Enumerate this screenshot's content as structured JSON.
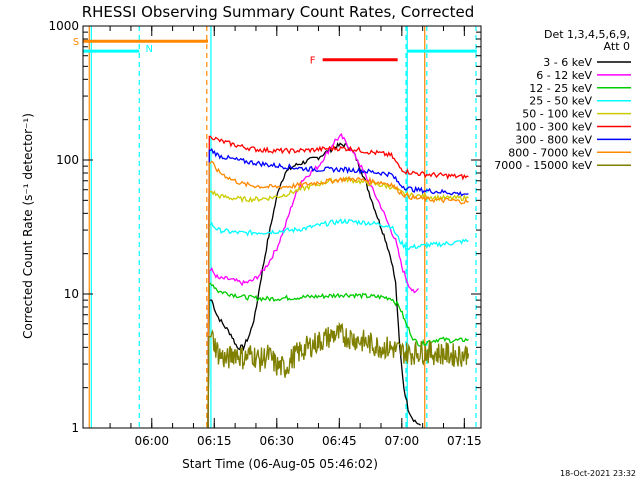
{
  "chart_data": {
    "type": "line",
    "title": "RHESSI Observing Summary Count Rates, Corrected",
    "xlabel": "Start Time (06-Aug-05 05:46:02)",
    "ylabel": "Corrected Count Rate (s⁻¹ detector⁻¹)",
    "yscale": "log",
    "ylim": [
      1,
      1000
    ],
    "xlim_minutes": [
      -2.5,
      93
    ],
    "x_ticks": [
      {
        "label": "06:00",
        "minute": 14
      },
      {
        "label": "06:15",
        "minute": 29
      },
      {
        "label": "06:30",
        "minute": 44
      },
      {
        "label": "06:45",
        "minute": 59
      },
      {
        "label": "07:00",
        "minute": 74
      },
      {
        "label": "07:15",
        "minute": 89
      }
    ],
    "y_ticks": [
      {
        "label": "1",
        "value": 1
      },
      {
        "label": "10",
        "value": 10
      },
      {
        "label": "100",
        "value": 100
      },
      {
        "label": "1000",
        "value": 1000
      }
    ],
    "legend": {
      "position": "right",
      "header": [
        "Det 1,3,4,5,6,9,",
        "Att 0"
      ]
    },
    "series": [
      {
        "name": "3 - 6 keV",
        "color": "#000000",
        "points": [
          [
            27.5,
            0
          ],
          [
            28.4,
            9
          ],
          [
            29.6,
            7
          ],
          [
            31,
            6
          ],
          [
            33,
            5
          ],
          [
            34.5,
            4
          ],
          [
            36,
            4
          ],
          [
            37.5,
            5
          ],
          [
            38.8,
            7
          ],
          [
            40,
            12
          ],
          [
            41.5,
            22
          ],
          [
            43,
            38
          ],
          [
            44.5,
            62
          ],
          [
            46,
            80
          ],
          [
            48,
            90
          ],
          [
            50,
            95
          ],
          [
            52,
            100
          ],
          [
            54,
            105
          ],
          [
            56,
            115
          ],
          [
            58,
            125
          ],
          [
            59.5,
            130
          ],
          [
            61,
            128
          ],
          [
            62.5,
            112
          ],
          [
            64,
            88
          ],
          [
            65.5,
            66
          ],
          [
            67,
            48
          ],
          [
            68.5,
            35
          ],
          [
            70,
            26
          ],
          [
            71.5,
            18
          ],
          [
            72.5,
            12
          ],
          [
            73.5,
            4
          ],
          [
            74.5,
            2
          ],
          [
            75.5,
            1.4
          ],
          [
            76.5,
            1.2
          ],
          [
            77.5,
            1.1
          ],
          [
            78.5,
            1.05
          ]
        ]
      },
      {
        "name": "6 - 12 keV",
        "color": "#ff00ff",
        "points": [
          [
            27.5,
            0
          ],
          [
            28.4,
            15
          ],
          [
            30,
            13
          ],
          [
            32,
            13
          ],
          [
            34,
            12.5
          ],
          [
            36,
            12
          ],
          [
            38,
            12.5
          ],
          [
            40,
            14
          ],
          [
            42,
            17
          ],
          [
            44,
            22
          ],
          [
            46,
            32
          ],
          [
            48,
            50
          ],
          [
            50,
            70
          ],
          [
            52,
            80
          ],
          [
            54,
            90
          ],
          [
            56,
            112
          ],
          [
            58,
            140
          ],
          [
            59.5,
            150
          ],
          [
            61,
            130
          ],
          [
            63,
            105
          ],
          [
            65,
            80
          ],
          [
            67,
            60
          ],
          [
            69,
            45
          ],
          [
            71,
            32
          ],
          [
            72.5,
            25
          ],
          [
            74,
            16
          ],
          [
            75.5,
            12
          ],
          [
            77,
            10
          ],
          [
            78,
            11
          ]
        ]
      },
      {
        "name": "12 - 25 keV",
        "color": "#00cc00",
        "points": [
          [
            27.5,
            0
          ],
          [
            28.4,
            12
          ],
          [
            30,
            10.5
          ],
          [
            33,
            10
          ],
          [
            36,
            9.5
          ],
          [
            39,
            9.3
          ],
          [
            42,
            9.2
          ],
          [
            45,
            9.3
          ],
          [
            48,
            9.4
          ],
          [
            51,
            9.5
          ],
          [
            54,
            9.6
          ],
          [
            57,
            9.7
          ],
          [
            60,
            9.9
          ],
          [
            63,
            9.8
          ],
          [
            66,
            9.6
          ],
          [
            69,
            9.5
          ],
          [
            71.5,
            9.3
          ],
          [
            73.5,
            8
          ],
          [
            75,
            6
          ],
          [
            77,
            4.5
          ],
          [
            78.5,
            4.2
          ],
          [
            80,
            4.4
          ],
          [
            83,
            4.6
          ],
          [
            86,
            4.5
          ],
          [
            88,
            4.5
          ],
          [
            90,
            4.6
          ]
        ]
      },
      {
        "name": "25 - 50 keV",
        "color": "#00ffff",
        "points": [
          [
            27.5,
            0
          ],
          [
            28.4,
            33
          ],
          [
            30,
            30
          ],
          [
            33,
            29
          ],
          [
            36,
            28.5
          ],
          [
            39,
            28.8
          ],
          [
            42,
            29
          ],
          [
            45,
            29.5
          ],
          [
            48,
            30
          ],
          [
            51,
            31
          ],
          [
            54,
            32.5
          ],
          [
            57,
            34
          ],
          [
            60,
            35
          ],
          [
            63,
            34.5
          ],
          [
            66,
            34
          ],
          [
            69,
            33
          ],
          [
            71.5,
            32
          ],
          [
            73.5,
            25
          ],
          [
            75,
            22
          ],
          [
            77,
            22.5
          ],
          [
            80,
            23
          ],
          [
            83,
            23.5
          ],
          [
            86,
            24
          ],
          [
            88,
            24.5
          ],
          [
            90,
            25
          ]
        ]
      },
      {
        "name": "50 - 100 keV",
        "color": "#cccc00",
        "points": [
          [
            27.5,
            0
          ],
          [
            28.4,
            58
          ],
          [
            30,
            54
          ],
          [
            33,
            52
          ],
          [
            36,
            51
          ],
          [
            39,
            51
          ],
          [
            42,
            52
          ],
          [
            45,
            54
          ],
          [
            48,
            58
          ],
          [
            51,
            62
          ],
          [
            54,
            66
          ],
          [
            57,
            70
          ],
          [
            60,
            72
          ],
          [
            63,
            70
          ],
          [
            66,
            67
          ],
          [
            69,
            65
          ],
          [
            71.5,
            63
          ],
          [
            73.5,
            58
          ],
          [
            75,
            55
          ],
          [
            78,
            54
          ],
          [
            81,
            53
          ],
          [
            84,
            52
          ],
          [
            87,
            52
          ],
          [
            90,
            52
          ]
        ]
      },
      {
        "name": "100 - 300 keV",
        "color": "#ff0000",
        "points": [
          [
            27.5,
            0
          ],
          [
            28.4,
            150
          ],
          [
            30,
            140
          ],
          [
            33,
            132
          ],
          [
            36,
            125
          ],
          [
            39,
            120
          ],
          [
            42,
            118
          ],
          [
            45,
            117
          ],
          [
            48,
            117
          ],
          [
            51,
            118
          ],
          [
            54,
            120
          ],
          [
            57,
            122
          ],
          [
            60,
            122
          ],
          [
            63,
            120
          ],
          [
            66,
            115
          ],
          [
            69,
            112
          ],
          [
            71.5,
            108
          ],
          [
            73.5,
            88
          ],
          [
            75,
            82
          ],
          [
            77,
            80
          ],
          [
            80,
            78
          ],
          [
            83,
            77
          ],
          [
            86,
            76
          ],
          [
            88,
            75
          ],
          [
            90,
            75
          ]
        ]
      },
      {
        "name": "300 - 800 keV",
        "color": "#0000ff",
        "points": [
          [
            27.5,
            0
          ],
          [
            28.4,
            118
          ],
          [
            30,
            108
          ],
          [
            33,
            102
          ],
          [
            36,
            98
          ],
          [
            39,
            95
          ],
          [
            42,
            92
          ],
          [
            45,
            90
          ],
          [
            48,
            88
          ],
          [
            51,
            86
          ],
          [
            54,
            85
          ],
          [
            57,
            85
          ],
          [
            60,
            85
          ],
          [
            63,
            84
          ],
          [
            66,
            82
          ],
          [
            69,
            80
          ],
          [
            71.5,
            78
          ],
          [
            73.5,
            66
          ],
          [
            75,
            62
          ],
          [
            77,
            60
          ],
          [
            80,
            59
          ],
          [
            83,
            58
          ],
          [
            86,
            57
          ],
          [
            88,
            56
          ],
          [
            90,
            56
          ]
        ]
      },
      {
        "name": "800 - 7000 keV",
        "color": "#ff8800",
        "points": [
          [
            27.5,
            0
          ],
          [
            28.4,
            95
          ],
          [
            30,
            82
          ],
          [
            33,
            72
          ],
          [
            36,
            66
          ],
          [
            39,
            64
          ],
          [
            42,
            63
          ],
          [
            45,
            63
          ],
          [
            48,
            64
          ],
          [
            51,
            66
          ],
          [
            54,
            68
          ],
          [
            57,
            70
          ],
          [
            60,
            72
          ],
          [
            63,
            72
          ],
          [
            66,
            70
          ],
          [
            69,
            68
          ],
          [
            71.5,
            66
          ],
          [
            73.5,
            58
          ],
          [
            75,
            54
          ],
          [
            77,
            52
          ],
          [
            80,
            51
          ],
          [
            83,
            50
          ],
          [
            86,
            50
          ],
          [
            88,
            49
          ],
          [
            90,
            49
          ]
        ]
      },
      {
        "name": "7000 - 15000 keV",
        "color": "#808000",
        "points": [
          [
            27.5,
            0
          ],
          [
            28.4,
            4.8
          ],
          [
            30,
            3.6
          ],
          [
            32,
            3.2
          ],
          [
            34,
            3.7
          ],
          [
            36,
            3.3
          ],
          [
            38,
            3.6
          ],
          [
            40,
            3.2
          ],
          [
            42,
            3.5
          ],
          [
            44,
            2.9
          ],
          [
            46,
            2.8
          ],
          [
            48,
            3.4
          ],
          [
            50,
            3.8
          ],
          [
            52,
            4.1
          ],
          [
            54,
            4.4
          ],
          [
            56,
            4.7
          ],
          [
            58,
            5
          ],
          [
            60,
            4.9
          ],
          [
            62,
            4.7
          ],
          [
            64,
            4.5
          ],
          [
            66,
            4.3
          ],
          [
            68,
            4.1
          ],
          [
            70,
            4
          ],
          [
            72,
            3.9
          ],
          [
            74,
            3.7
          ],
          [
            76,
            3.6
          ],
          [
            78,
            3.7
          ],
          [
            80,
            3.7
          ],
          [
            82,
            3.6
          ],
          [
            84,
            3.6
          ],
          [
            86,
            3.5
          ],
          [
            88,
            3.5
          ],
          [
            90,
            3.6
          ]
        ]
      }
    ],
    "flag_bars": [
      {
        "label": "S",
        "color": "#ff8800",
        "x_start": -2.5,
        "x_end": 27.5,
        "y_value": 770
      },
      {
        "label": "N",
        "color": "#00ffff",
        "x_start": -2.5,
        "x_end": 11,
        "y_value": 650
      },
      {
        "label": "",
        "color": "#00ffff",
        "x_start": 75.3,
        "x_end": 92,
        "y_value": 650
      },
      {
        "label": "F",
        "color": "#ff0000",
        "x_start": 55,
        "x_end": 73,
        "y_value": 560
      }
    ],
    "vertical_lines": [
      {
        "minute": -1,
        "color": "#ff8800",
        "style": "solid"
      },
      {
        "minute": -0.5,
        "color": "#00ffff",
        "style": "solid"
      },
      {
        "minute": 11,
        "color": "#00ffff",
        "style": "dashed"
      },
      {
        "minute": 27.2,
        "color": "#ff8800",
        "style": "dashed"
      },
      {
        "minute": 28.2,
        "color": "#00ffff",
        "style": "solid"
      },
      {
        "minute": 75,
        "color": "#00ffff",
        "style": "dashed"
      },
      {
        "minute": 75.3,
        "color": "#00ffff",
        "style": "solid"
      },
      {
        "minute": 79.5,
        "color": "#ff8800",
        "style": "solid"
      },
      {
        "minute": 80,
        "color": "#00ffff",
        "style": "dashed"
      },
      {
        "minute": 91.8,
        "color": "#00ffff",
        "style": "dashed"
      }
    ],
    "timestamp": "18-Oct-2021 23:32"
  }
}
